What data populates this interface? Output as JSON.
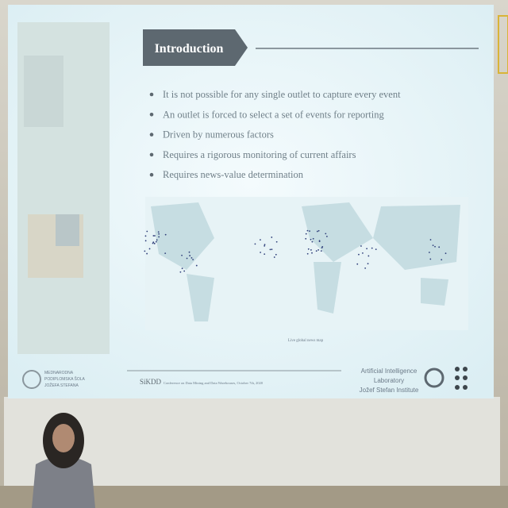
{
  "slide": {
    "title": "Introduction",
    "bullets": [
      "It is not possible for any single outlet to capture every event",
      "An outlet is forced to select a set of events for reporting",
      "Driven by numerous factors",
      "Requires a rigorous monitoring of current affairs",
      "Requires news-value determination"
    ],
    "map_caption": "Live global news map",
    "footer": {
      "school": [
        "MEDNARODNA",
        "PODIPLOMSKA ŠOLA",
        "JOŽEFA STEFANA"
      ],
      "conference_name": "SiKDD",
      "conference_text": "Conference on Data Mining and Data Warehouses, October 7th, 2020",
      "lab": [
        "Artificial Intelligence",
        "Laboratory",
        "Jožef Stefan Institute"
      ]
    }
  }
}
